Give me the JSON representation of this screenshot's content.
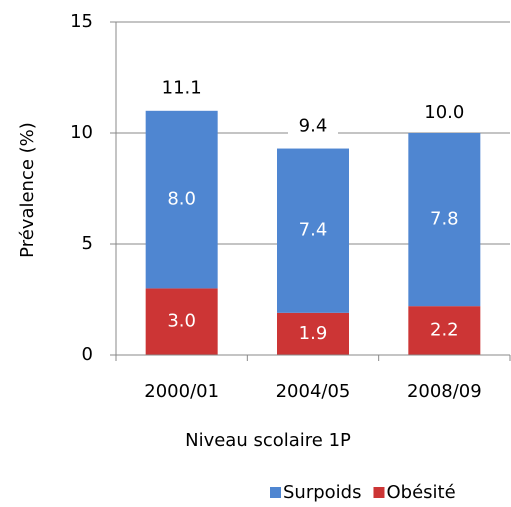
{
  "chart_data": {
    "type": "stacked_bar",
    "categories": [
      "2000/01",
      "2004/05",
      "2008/09"
    ],
    "series": [
      {
        "name": "Surpoids",
        "color": "#4f86d1",
        "values": [
          8.0,
          7.4,
          7.8
        ],
        "value_labels": [
          "8.0",
          "7.4",
          "7.8"
        ]
      },
      {
        "name": "Obésité",
        "color": "#cc3535",
        "values": [
          3.0,
          1.9,
          2.2
        ],
        "value_labels": [
          "3.0",
          "1.9",
          "2.2"
        ]
      }
    ],
    "totals": {
      "values": [
        11.1,
        9.4,
        10.0
      ],
      "value_labels": [
        "11.1",
        "9.4",
        "10.0"
      ]
    },
    "ylim": [
      0,
      15
    ],
    "yticks": [
      0,
      5,
      10,
      15
    ],
    "grid": true,
    "ylabel": "Prévalence (%)",
    "xlabel": "Niveau scolaire 1P",
    "legend": "bottom"
  }
}
